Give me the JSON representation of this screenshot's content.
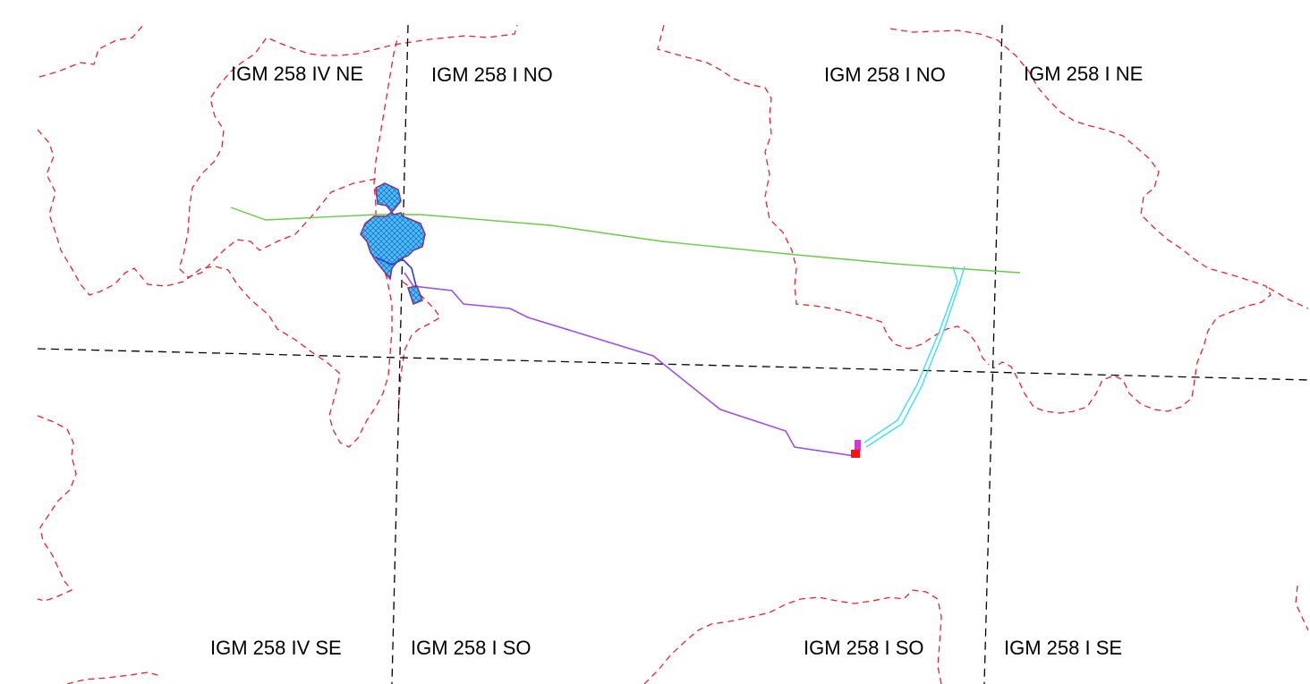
{
  "map": {
    "sheet_labels": [
      {
        "id": "igm-258-iv-ne",
        "text": "IGM 258 IV NE"
      },
      {
        "id": "igm-258-i-no-left",
        "text": "IGM 258 I NO"
      },
      {
        "id": "igm-258-i-no-right",
        "text": "IGM 258 I NO"
      },
      {
        "id": "igm-258-i-ne",
        "text": "IGM 258 I NE"
      },
      {
        "id": "igm-258-iv-se",
        "text": "IGM 258 IV SE"
      },
      {
        "id": "igm-258-i-so-left",
        "text": "IGM 258 I SO"
      },
      {
        "id": "igm-258-i-so-right",
        "text": "IGM 258 I SO"
      },
      {
        "id": "igm-258-i-se",
        "text": "IGM 258 I SE"
      }
    ],
    "colors": {
      "sheet_grid": "#000000",
      "contour": "#e8232b",
      "road": "#6ac94a",
      "purple_route": "#9d4fe8",
      "cyan_route": "#3fe0ee",
      "site_outline": "#2d3bd4",
      "site_fill": "#44b8ee",
      "marker_red": "#ff1010",
      "marker_magenta": "#e030e0"
    }
  }
}
